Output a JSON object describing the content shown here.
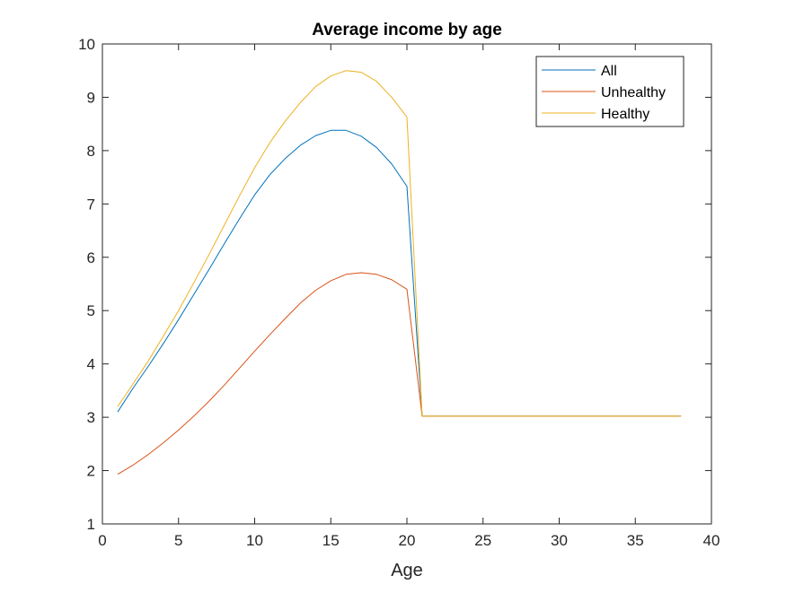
{
  "chart_data": {
    "type": "line",
    "title": "Average income by age",
    "xlabel": "Age",
    "ylabel": "",
    "xlim": [
      0,
      40
    ],
    "ylim": [
      1,
      10
    ],
    "xticks": [
      0,
      5,
      10,
      15,
      20,
      25,
      30,
      35,
      40
    ],
    "yticks": [
      1,
      2,
      3,
      4,
      5,
      6,
      7,
      8,
      9,
      10
    ],
    "grid": false,
    "legend_position": "top-right",
    "x": [
      1,
      2,
      3,
      4,
      5,
      6,
      7,
      8,
      9,
      10,
      11,
      12,
      13,
      14,
      15,
      16,
      17,
      18,
      19,
      20,
      21,
      22,
      23,
      24,
      25,
      26,
      27,
      28,
      29,
      30,
      31,
      32,
      33,
      34,
      35,
      36,
      37,
      38
    ],
    "series": [
      {
        "name": "All",
        "color": "#0072BD",
        "values": [
          3.1,
          3.54,
          3.95,
          4.38,
          4.83,
          5.3,
          5.77,
          6.25,
          6.72,
          7.17,
          7.55,
          7.85,
          8.1,
          8.28,
          8.38,
          8.38,
          8.27,
          8.06,
          7.75,
          7.33,
          3.02,
          3.02,
          3.02,
          3.02,
          3.02,
          3.02,
          3.02,
          3.02,
          3.02,
          3.02,
          3.02,
          3.02,
          3.02,
          3.02,
          3.02,
          3.02,
          3.02,
          3.02
        ]
      },
      {
        "name": "Unhealthy",
        "color": "#D95319",
        "values": [
          1.93,
          2.1,
          2.3,
          2.52,
          2.76,
          3.02,
          3.3,
          3.6,
          3.92,
          4.24,
          4.55,
          4.85,
          5.14,
          5.38,
          5.56,
          5.68,
          5.71,
          5.68,
          5.58,
          5.4,
          3.02,
          3.02,
          3.02,
          3.02,
          3.02,
          3.02,
          3.02,
          3.02,
          3.02,
          3.02,
          3.02,
          3.02,
          3.02,
          3.02,
          3.02,
          3.02,
          3.02,
          3.02
        ]
      },
      {
        "name": "Healthy",
        "color": "#EDB120",
        "values": [
          3.2,
          3.62,
          4.05,
          4.52,
          5.0,
          5.52,
          6.05,
          6.6,
          7.15,
          7.68,
          8.15,
          8.55,
          8.9,
          9.2,
          9.4,
          9.5,
          9.47,
          9.3,
          9.0,
          8.63,
          3.02,
          3.02,
          3.02,
          3.02,
          3.02,
          3.02,
          3.02,
          3.02,
          3.02,
          3.02,
          3.02,
          3.02,
          3.02,
          3.02,
          3.02,
          3.02,
          3.02,
          3.02
        ]
      }
    ]
  }
}
